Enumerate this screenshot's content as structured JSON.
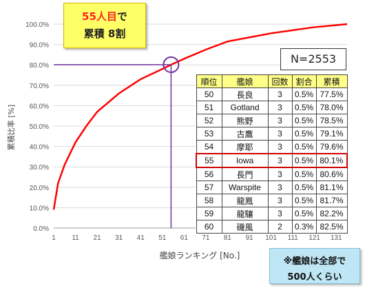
{
  "chart_data": {
    "type": "line",
    "xlabel": "艦娘ランキング [No.]",
    "ylabel": "累積比率 [%]",
    "xlim": [
      1,
      136
    ],
    "ylim": [
      0,
      100
    ],
    "x_ticks": [
      "1",
      "11",
      "21",
      "31",
      "41",
      "51",
      "61",
      "71",
      "81",
      "91",
      "101",
      "111",
      "121",
      "131"
    ],
    "y_ticks": [
      "0.0%",
      "10.0%",
      "20.0%",
      "30.0%",
      "40.0%",
      "50.0%",
      "60.0%",
      "70.0%",
      "80.0%",
      "90.0%",
      "100.0%"
    ],
    "grid": "horizontal",
    "series": [
      {
        "color": "#ff0000",
        "x": [
          1,
          3,
          6,
          11,
          16,
          21,
          31,
          41,
          51,
          55,
          61,
          71,
          81,
          91,
          101,
          111,
          121,
          131,
          136
        ],
        "y": [
          9,
          22,
          31,
          42,
          50,
          57,
          66,
          73,
          78,
          80.1,
          83,
          87.5,
          91.5,
          93.5,
          95.5,
          97,
          98.5,
          99.5,
          100
        ]
      }
    ],
    "reference_point": {
      "x": 55,
      "y": 80.1
    },
    "reference_color": "#7030a0"
  },
  "callout": {
    "line1_red": "55人目",
    "line1_rest": "で",
    "line2": "累積 8割"
  },
  "total_label": "N=2553",
  "table": {
    "headers": [
      "順位",
      "艦娘",
      "回数",
      "割合",
      "累積"
    ],
    "rows": [
      [
        "50",
        "長良",
        "3",
        "0.5%",
        "77.5%"
      ],
      [
        "51",
        "Gotland",
        "3",
        "0.5%",
        "78.0%"
      ],
      [
        "52",
        "熊野",
        "3",
        "0.5%",
        "78.5%"
      ],
      [
        "53",
        "古鷹",
        "3",
        "0.5%",
        "79.1%"
      ],
      [
        "54",
        "摩耶",
        "3",
        "0.5%",
        "79.6%"
      ],
      [
        "55",
        "Iowa",
        "3",
        "0.5%",
        "80.1%"
      ],
      [
        "56",
        "長門",
        "3",
        "0.5%",
        "80.6%"
      ],
      [
        "57",
        "Warspite",
        "3",
        "0.5%",
        "81.1%"
      ],
      [
        "58",
        "龍鳳",
        "3",
        "0.5%",
        "81.7%"
      ],
      [
        "59",
        "龍驤",
        "3",
        "0.5%",
        "82.2%"
      ],
      [
        "60",
        "磯風",
        "2",
        "0.3%",
        "82.5%"
      ]
    ],
    "highlight_rank": "55",
    "highlight_color": "#d00000"
  },
  "note": {
    "line1": "※艦娘は全部で",
    "line2": "500人くらい"
  }
}
